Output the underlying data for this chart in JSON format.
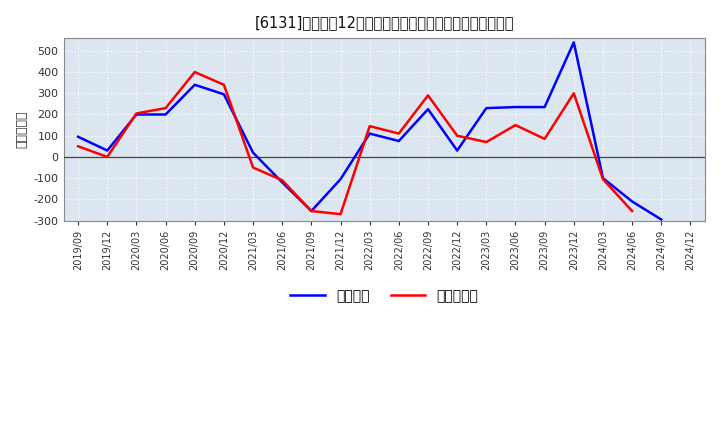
{
  "title": "[6131]　利益だ12か月移動合計の対前年同期増減額の推移",
  "ylabel": "（百万円）",
  "background_color": "#ffffff",
  "plot_bg_color": "#dce6f0",
  "grid_color": "#ffffff",
  "ylim": [
    -300,
    560
  ],
  "yticks": [
    -300,
    -200,
    -100,
    0,
    100,
    200,
    300,
    400,
    500
  ],
  "legend_labels": [
    "経常利益",
    "当期純利益"
  ],
  "line_colors": [
    "#0000ff",
    "#ff0000"
  ],
  "x_labels": [
    "2019/09",
    "2019/12",
    "2020/03",
    "2020/06",
    "2020/09",
    "2020/12",
    "2021/03",
    "2021/06",
    "2021/09",
    "2021/12",
    "2022/03",
    "2022/06",
    "2022/09",
    "2022/12",
    "2023/03",
    "2023/06",
    "2023/09",
    "2023/12",
    "2024/03",
    "2024/06",
    "2024/09",
    "2024/12"
  ],
  "series_blue": [
    95,
    30,
    200,
    200,
    340,
    295,
    20,
    -120,
    -255,
    -105,
    110,
    75,
    225,
    30,
    230,
    235,
    235,
    540,
    -100,
    -210,
    -295,
    null
  ],
  "series_red": [
    50,
    0,
    205,
    230,
    400,
    340,
    -50,
    -110,
    -255,
    -270,
    145,
    110,
    290,
    100,
    70,
    150,
    85,
    300,
    -105,
    -255,
    null,
    null
  ]
}
